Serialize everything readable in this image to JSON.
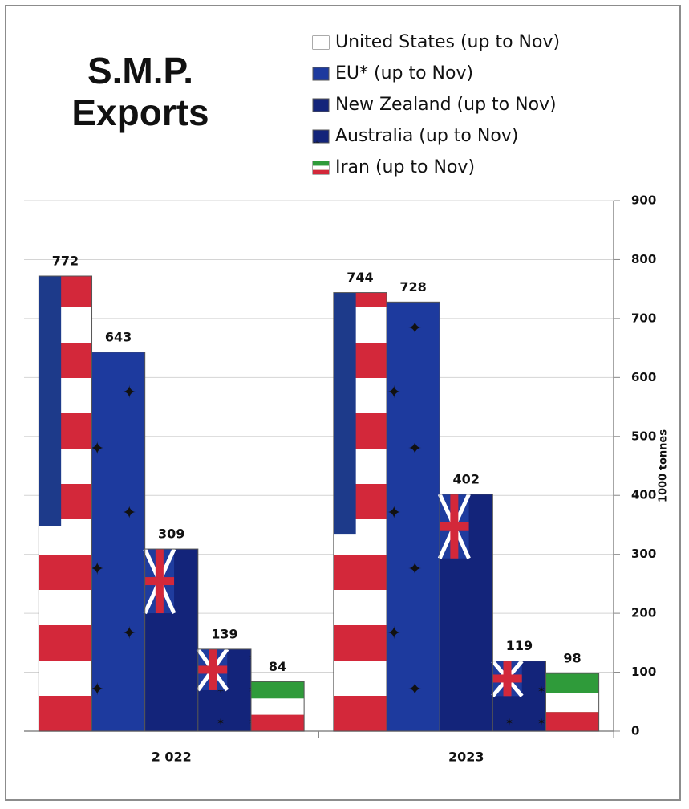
{
  "chart_data": {
    "type": "bar",
    "title": "S.M.P. Exports",
    "categories": [
      "2 022",
      "2023"
    ],
    "series": [
      {
        "name": "United States (up to Nov)",
        "color": "#d3283a",
        "values": [
          772,
          744
        ]
      },
      {
        "name": "EU* (up to Nov)",
        "color": "#1d3a9e",
        "values": [
          643,
          728
        ]
      },
      {
        "name": "New Zealand (up to Nov)",
        "color": "#13247a",
        "values": [
          309,
          402
        ]
      },
      {
        "name": "Australia (up to Nov)",
        "color": "#13247a",
        "values": [
          139,
          119
        ]
      },
      {
        "name": "Iran (up to Nov)",
        "color": "#2f9b3a",
        "values": [
          84,
          98
        ]
      }
    ],
    "y_axis_label": "1000 tonnes",
    "ylim": [
      0,
      900
    ],
    "yticks": [
      0,
      100,
      200,
      300,
      400,
      500,
      600,
      700,
      800,
      900
    ],
    "grid": true
  }
}
